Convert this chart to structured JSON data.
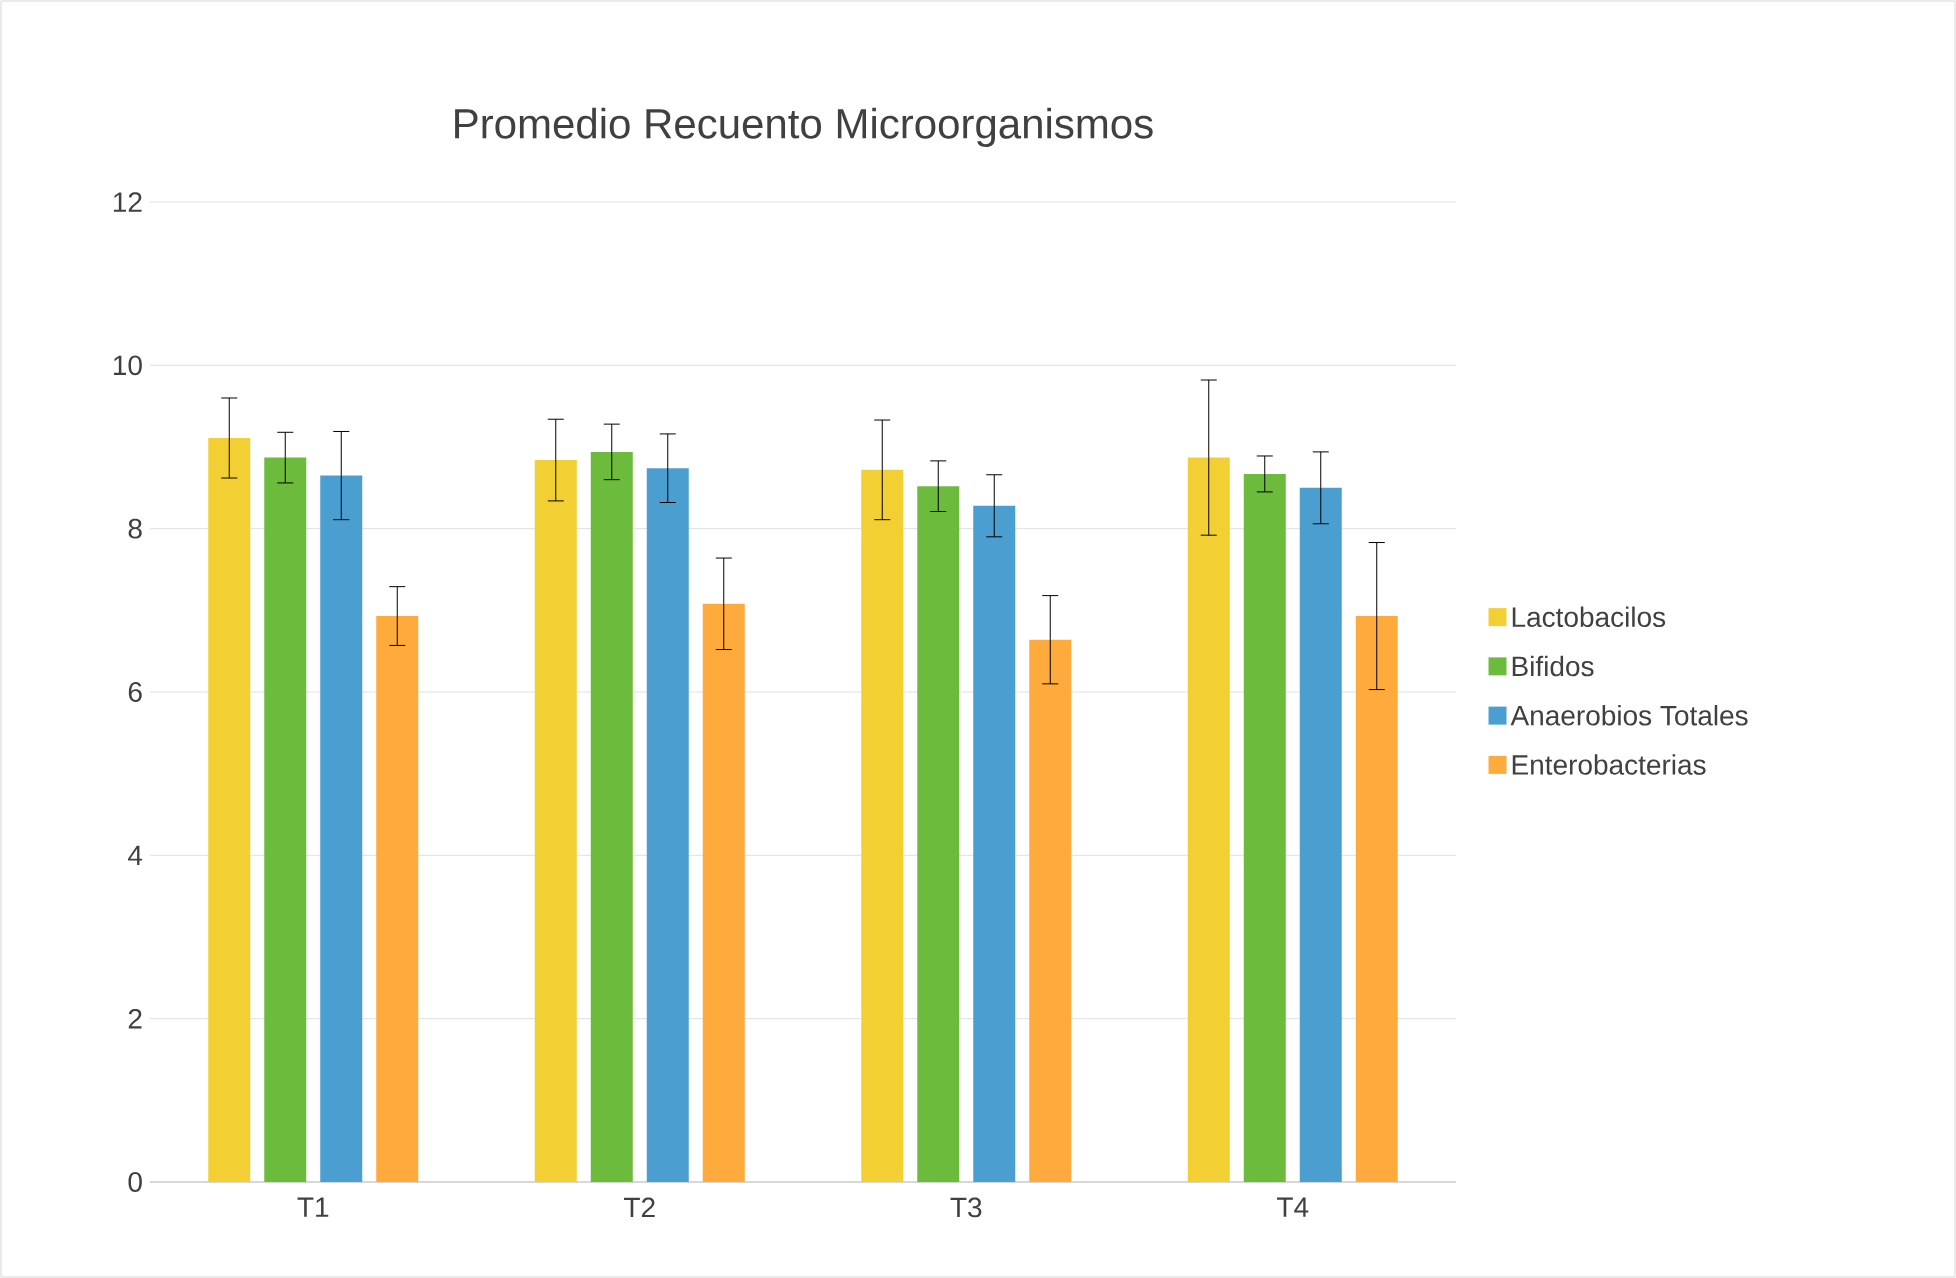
{
  "chart_data": {
    "type": "bar",
    "title": "Promedio Recuento Microorganismos",
    "categories": [
      "T1",
      "T2",
      "T3",
      "T4"
    ],
    "series": [
      {
        "name": "Lactobacilos",
        "color": "#f2d033",
        "values": [
          9.11,
          8.84,
          8.72,
          8.87
        ],
        "errors": [
          0.49,
          0.5,
          0.61,
          0.95
        ]
      },
      {
        "name": "Bifidos",
        "color": "#6dbb3c",
        "values": [
          8.87,
          8.94,
          8.52,
          8.67
        ],
        "errors": [
          0.31,
          0.34,
          0.31,
          0.22
        ]
      },
      {
        "name": "Anaerobios Totales",
        "color": "#4a9fd0",
        "values": [
          8.65,
          8.74,
          8.28,
          8.5
        ],
        "errors": [
          0.54,
          0.42,
          0.38,
          0.44
        ]
      },
      {
        "name": "Enterobacterias",
        "color": "#ffaa3c",
        "values": [
          6.93,
          7.08,
          6.64,
          6.93
        ],
        "errors": [
          0.36,
          0.56,
          0.54,
          0.9
        ]
      }
    ],
    "ylim": [
      0,
      12
    ],
    "yticks": [
      0,
      2,
      4,
      6,
      8,
      10,
      12
    ],
    "grid": "y",
    "legend": "right"
  }
}
